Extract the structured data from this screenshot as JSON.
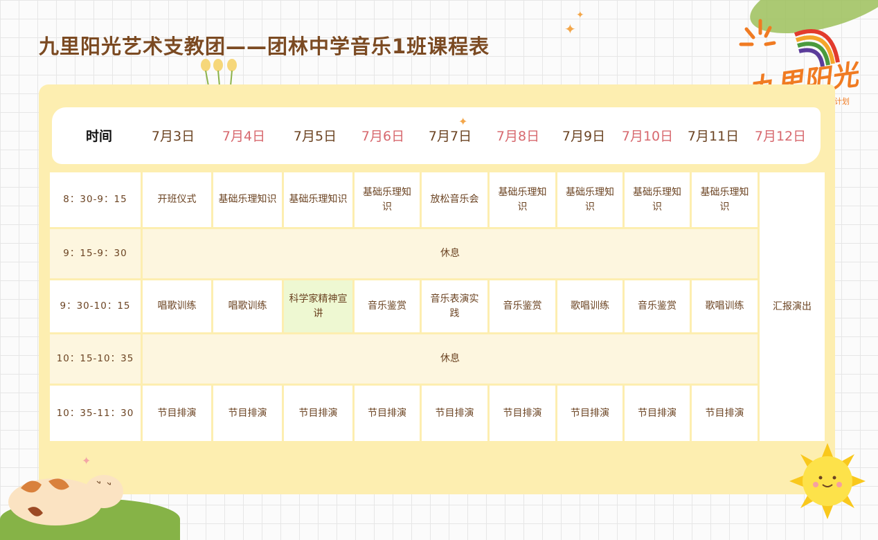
{
  "title": "九里阳光艺术支教团——团林中学音乐1班课程表",
  "logo": {
    "text": "九里阳光",
    "subtext": "计划"
  },
  "colors": {
    "title": "#7b4a22",
    "frame": "#fdeeb0",
    "date_red": "#d7686e",
    "date_brown": "#6b4322",
    "highlight": "#eef8d2"
  },
  "header": {
    "time_label": "时间",
    "dates": [
      "7月3日",
      "7月4日",
      "7月5日",
      "7月6日",
      "7月7日",
      "7月8日",
      "7月9日",
      "7月10日",
      "7月11日",
      "7月12日"
    ]
  },
  "rows": [
    {
      "time": "8：30-9：15",
      "cells": [
        "开班仪式",
        "基础乐理知识",
        "基础乐理知识",
        "基础乐理知识",
        "放松音乐会",
        "基础乐理知识",
        "基础乐理知识",
        "基础乐理知识",
        "基础乐理知识"
      ]
    },
    {
      "time": "9：15-9：30",
      "rest": "休息"
    },
    {
      "time": "9：30-10：15",
      "cells": [
        "唱歌训练",
        "唱歌训练",
        "科学家精神宣讲",
        "音乐鉴赏",
        "音乐表演实践",
        "音乐鉴赏",
        "歌唱训练",
        "音乐鉴赏",
        "歌唱训练"
      ]
    },
    {
      "time": "10：15-10：35",
      "rest": "休息"
    },
    {
      "time": "10：35-11：30",
      "cells": [
        "节目排演",
        "节目排演",
        "节目排演",
        "节目排演",
        "节目排演",
        "节目排演",
        "节目排演",
        "节目排演",
        "节目排演"
      ]
    }
  ],
  "last_column": "汇报演出"
}
